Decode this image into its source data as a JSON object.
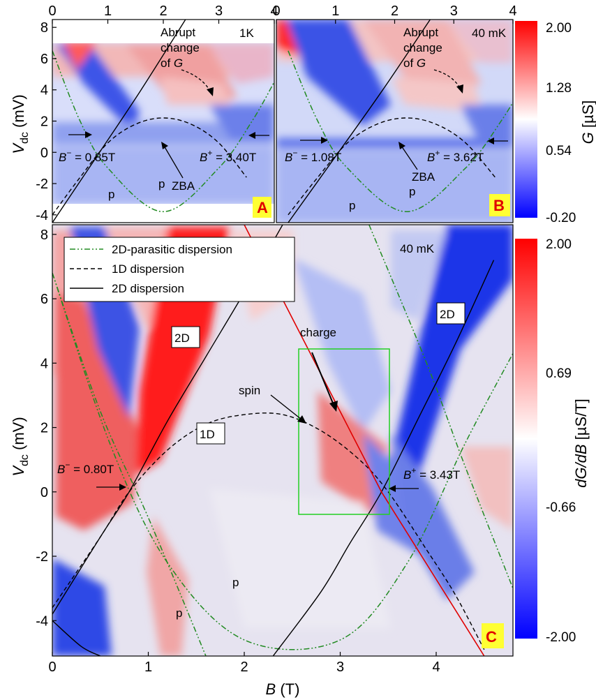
{
  "chart_data": [
    {
      "panel": "A",
      "type": "heatmap",
      "label": "A",
      "temperature": "1K",
      "xlim": [
        0,
        4
      ],
      "ylim": [
        -4.5,
        8.5
      ],
      "xticks": [
        "0",
        "1",
        "2",
        "3",
        "4"
      ],
      "yticks": [
        "-4",
        "-2",
        "0",
        "2",
        "4",
        "6",
        "8"
      ],
      "ylabel_main": "V",
      "ylabel_sub": "dc",
      "ylabel_unit": " (mV)",
      "colorbar": {
        "label_main": "G",
        "label_unit": " [µS]",
        "ticks": [
          "2.00",
          "1.28",
          "0.54",
          "-0.20"
        ]
      },
      "annotations": {
        "abrupt": [
          "Abrupt",
          "change",
          "of "
        ],
        "abrupt_g": "G",
        "zba": "ZBA",
        "bminus": {
          "B": "B",
          "sup": "−",
          "value": " = 0.85T"
        },
        "bplus": {
          "B": "B",
          "sup": "+",
          "value": " = 3.40T"
        },
        "p": "p"
      },
      "curves": {
        "dispersion_1d": {
          "x": [
            0.0,
            0.5,
            1.0,
            1.5,
            2.0,
            2.5,
            3.0,
            3.5
          ],
          "y": [
            -4.0,
            -1.6,
            0.6,
            1.8,
            2.2,
            1.8,
            0.6,
            -1.6
          ]
        },
        "dispersion_2d": {
          "x": [
            0.0,
            0.85,
            1.6,
            2.4
          ],
          "y": [
            -4.5,
            0.0,
            4.0,
            8.5
          ]
        },
        "parasitic": {
          "x": [
            0.0,
            0.5,
            1.0,
            2.0,
            3.0,
            3.6,
            4.0
          ],
          "y": [
            6.5,
            2.0,
            -1.0,
            -3.8,
            -1.0,
            2.0,
            4.5
          ]
        }
      }
    },
    {
      "panel": "B",
      "type": "heatmap",
      "label": "B",
      "temperature": "40 mK",
      "xlim": [
        0,
        4
      ],
      "ylim": [
        -4.5,
        8.5
      ],
      "xticks": [
        "0",
        "1",
        "2",
        "3",
        "4"
      ],
      "annotations": {
        "abrupt": [
          "Abrupt",
          "change",
          "of "
        ],
        "abrupt_g": "G",
        "zba": "ZBA",
        "bminus": {
          "B": "B",
          "sup": "−",
          "value": " = 1.08T"
        },
        "bplus": {
          "B": "B",
          "sup": "+",
          "value": " = 3.62T"
        },
        "p": "p"
      }
    },
    {
      "panel": "C",
      "type": "heatmap",
      "label": "C",
      "temperature": "40 mK",
      "xlim": [
        0,
        4.8
      ],
      "ylim": [
        -5.1,
        8.3
      ],
      "xticks": [
        "0",
        "1",
        "2",
        "3",
        "4"
      ],
      "yticks": [
        "-4",
        "-2",
        "0",
        "2",
        "4",
        "6",
        "8"
      ],
      "xlabel_main": "B",
      "xlabel_unit": " (T)",
      "ylabel_main": "V",
      "ylabel_sub": "dc",
      "ylabel_unit": " (mV)",
      "colorbar": {
        "label_main": "dG/dB",
        "label_unit": " [µS/T]",
        "ticks": [
          "2.00",
          "0.69",
          "-0.66",
          "-2.00"
        ]
      },
      "legend": {
        "placement": "top-left",
        "entries": [
          "2D-parasitic dispersion",
          "1D dispersion",
          "2D dispersion"
        ]
      },
      "annotations": {
        "label_2d": "2D",
        "label_1d": "1D",
        "spin": "spin",
        "charge": "charge",
        "bminus": {
          "B": "B",
          "sup": "−",
          "value": " = 0.80T"
        },
        "bplus": {
          "B": "B",
          "sup": "+",
          "value": " = 3.43T"
        },
        "p": "p"
      },
      "curves": {
        "dispersion_1d": {
          "x": [
            0.0,
            0.5,
            0.8,
            1.2,
            1.6,
            2.0,
            2.4,
            2.8,
            3.2,
            3.5,
            3.9,
            4.2,
            4.5
          ],
          "y": [
            -3.6,
            -1.4,
            0.0,
            1.3,
            2.1,
            2.4,
            2.4,
            1.9,
            1.0,
            0.0,
            -1.8,
            -3.2,
            -4.9
          ]
        },
        "dispersion_2d_left": {
          "x": [
            0.0,
            0.5,
            0.8,
            1.2,
            1.6,
            2.0,
            2.4
          ],
          "y": [
            -3.8,
            -1.4,
            0.0,
            2.2,
            4.2,
            6.2,
            8.3
          ]
        },
        "dispersion_2d_right": {
          "x": [
            2.3,
            2.8,
            3.1,
            3.43,
            3.8,
            4.2,
            4.6
          ],
          "y": [
            -5.1,
            -3.1,
            -1.6,
            0.0,
            2.2,
            4.6,
            7.2
          ]
        },
        "charge_line": {
          "x": [
            2.0,
            3.43,
            4.5
          ],
          "y": [
            8.3,
            0.0,
            -5.1
          ]
        }
      }
    }
  ]
}
